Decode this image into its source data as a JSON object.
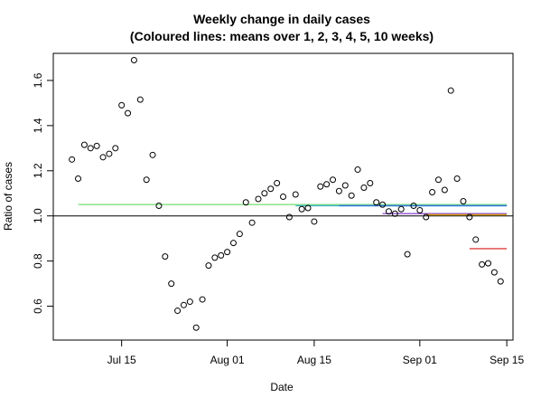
{
  "chart_data": {
    "type": "scatter",
    "title": "Weekly change in daily cases",
    "subtitle": "(Coloured lines: means over 1, 2, 3, 4, 5, 10 weeks)",
    "xlabel": "Date",
    "ylabel": "Ratio of cases",
    "x_start": "2020-07-07",
    "xlim": [
      "2020-07-04",
      "2020-09-16"
    ],
    "ylim": [
      0.45,
      1.72
    ],
    "x_ticks": [
      {
        "date": "2020-07-15",
        "label": "Jul 15"
      },
      {
        "date": "2020-08-01",
        "label": "Aug 01"
      },
      {
        "date": "2020-08-15",
        "label": "Aug 15"
      },
      {
        "date": "2020-09-01",
        "label": "Sep 01"
      },
      {
        "date": "2020-09-15",
        "label": "Sep 15"
      }
    ],
    "y_ticks": [
      0.6,
      0.8,
      1.0,
      1.2,
      1.4,
      1.6
    ],
    "reference_line": 1.0,
    "points": [
      1.25,
      1.165,
      1.315,
      1.3,
      1.31,
      1.26,
      1.275,
      1.3,
      1.49,
      1.455,
      1.69,
      1.515,
      1.16,
      1.27,
      1.045,
      0.82,
      0.7,
      0.58,
      0.605,
      0.62,
      0.505,
      0.63,
      0.78,
      0.815,
      0.825,
      0.84,
      0.88,
      0.92,
      1.06,
      0.97,
      1.075,
      1.1,
      1.12,
      1.145,
      1.085,
      0.995,
      1.095,
      1.03,
      1.035,
      0.975,
      1.13,
      1.14,
      1.16,
      1.11,
      1.135,
      1.09,
      1.205,
      1.125,
      1.145,
      1.06,
      1.05,
      1.02,
      1.01,
      1.03,
      0.83,
      1.045,
      1.025,
      0.995,
      1.105,
      1.16,
      1.115,
      1.555,
      1.165,
      1.065,
      0.995,
      0.895,
      0.785,
      0.79,
      0.75,
      0.71
    ],
    "mean_lines": [
      {
        "weeks": 1,
        "color": "#e04040",
        "value": 0.855,
        "from": "2020-09-09",
        "to": "2020-09-15"
      },
      {
        "weeks": 2,
        "color": "#e0a000",
        "value": 1.005,
        "from": "2020-09-02",
        "to": "2020-09-15"
      },
      {
        "weeks": 3,
        "color": "#9050d0",
        "value": 1.01,
        "from": "2020-08-26",
        "to": "2020-09-15"
      },
      {
        "weeks": 4,
        "color": "#3070e0",
        "value": 1.045,
        "from": "2020-08-19",
        "to": "2020-09-15"
      },
      {
        "weeks": 5,
        "color": "#40b0c0",
        "value": 1.045,
        "from": "2020-08-12",
        "to": "2020-09-15"
      },
      {
        "weeks": 10,
        "color": "#80e080",
        "value": 1.05,
        "from": "2020-07-08",
        "to": "2020-09-15"
      }
    ],
    "point_color": "#000000",
    "grid": false,
    "legend": "none"
  }
}
